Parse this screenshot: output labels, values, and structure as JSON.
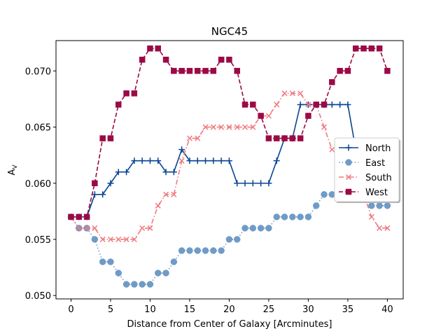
{
  "chart_data": {
    "type": "line",
    "title": "NGC45",
    "xlabel": "Distance from Center of Galaxy [Arcminutes]",
    "ylabel_main": "A",
    "ylabel_sub": "V",
    "xlim": [
      -1.9,
      42.0
    ],
    "ylim": [
      0.0497,
      0.0727
    ],
    "x_ticks": [
      0,
      5,
      10,
      15,
      20,
      25,
      30,
      35,
      40
    ],
    "y_ticks": [
      0.05,
      0.055,
      0.06,
      0.065,
      0.07
    ],
    "y_tick_labels": [
      "0.050",
      "0.055",
      "0.060",
      "0.065",
      "0.070"
    ],
    "x": [
      0,
      1,
      2,
      3,
      4,
      5,
      6,
      7,
      8,
      9,
      10,
      11,
      12,
      13,
      14,
      15,
      16,
      17,
      18,
      19,
      20,
      21,
      22,
      23,
      24,
      25,
      26,
      27,
      28,
      29,
      30,
      31,
      32,
      33,
      34,
      35,
      36,
      37,
      38,
      39,
      40
    ],
    "legend_position": "center right",
    "series": [
      {
        "name": "North",
        "color": "#084594",
        "linestyle": "solid",
        "marker": "plus",
        "values": [
          0.057,
          0.057,
          0.057,
          0.059,
          0.059,
          0.06,
          0.061,
          0.061,
          0.062,
          0.062,
          0.062,
          0.062,
          0.061,
          0.061,
          0.063,
          0.062,
          0.062,
          0.062,
          0.062,
          0.062,
          0.062,
          0.06,
          0.06,
          0.06,
          0.06,
          0.06,
          0.062,
          0.064,
          0.064,
          0.067,
          0.067,
          0.067,
          0.067,
          0.067,
          0.067,
          0.067,
          0.063,
          0.063,
          0.063,
          0.063,
          0.063
        ]
      },
      {
        "name": "East",
        "color": "#6f9bc6",
        "linestyle": "dotted",
        "marker": "circle",
        "values": [
          0.057,
          0.056,
          0.056,
          0.055,
          0.053,
          0.053,
          0.052,
          0.051,
          0.051,
          0.051,
          0.051,
          0.052,
          0.052,
          0.053,
          0.054,
          0.054,
          0.054,
          0.054,
          0.054,
          0.054,
          0.055,
          0.055,
          0.056,
          0.056,
          0.056,
          0.056,
          0.057,
          0.057,
          0.057,
          0.057,
          0.057,
          0.058,
          0.059,
          0.059,
          0.059,
          0.059,
          0.059,
          0.059,
          0.058,
          0.058,
          0.058
        ]
      },
      {
        "name": "South",
        "color": "#f07a80",
        "linestyle": "dashdot",
        "marker": "x",
        "values": [
          0.057,
          0.056,
          0.056,
          0.056,
          0.055,
          0.055,
          0.055,
          0.055,
          0.055,
          0.056,
          0.056,
          0.058,
          0.059,
          0.059,
          0.062,
          0.064,
          0.064,
          0.065,
          0.065,
          0.065,
          0.065,
          0.065,
          0.065,
          0.065,
          0.066,
          0.066,
          0.067,
          0.068,
          0.068,
          0.068,
          0.067,
          0.067,
          0.065,
          0.063,
          0.063,
          0.061,
          0.061,
          0.059,
          0.057,
          0.056,
          0.056
        ]
      },
      {
        "name": "West",
        "color": "#9b0a45",
        "linestyle": "dashed",
        "marker": "square",
        "values": [
          0.057,
          0.057,
          0.057,
          0.06,
          0.064,
          0.064,
          0.067,
          0.068,
          0.068,
          0.071,
          0.072,
          0.072,
          0.071,
          0.07,
          0.07,
          0.07,
          0.07,
          0.07,
          0.07,
          0.071,
          0.071,
          0.07,
          0.067,
          0.067,
          0.066,
          0.064,
          0.064,
          0.064,
          0.064,
          0.064,
          0.066,
          0.067,
          0.067,
          0.069,
          0.07,
          0.07,
          0.072,
          0.072,
          0.072,
          0.072,
          0.07
        ]
      }
    ]
  }
}
